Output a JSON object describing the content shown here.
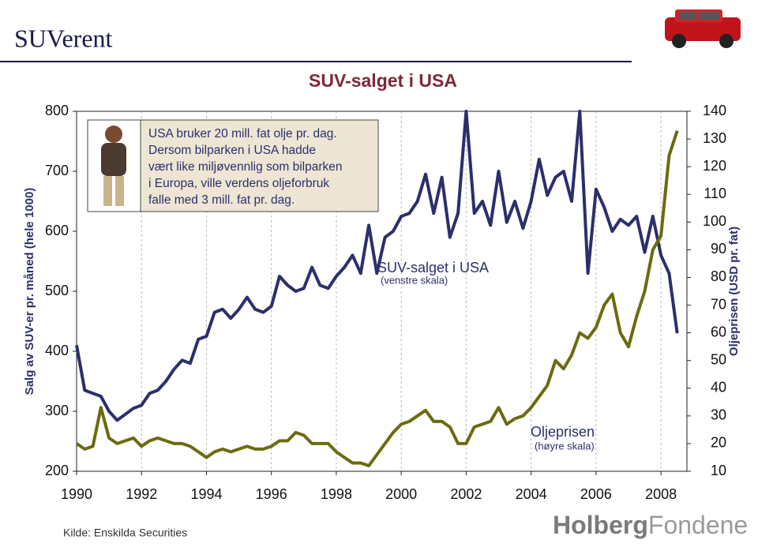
{
  "header": {
    "title": "SUVerent"
  },
  "source": "Kilde: Enskilda Securities",
  "logo": [
    "Holberg",
    "Fondene"
  ],
  "chart_data": {
    "type": "line",
    "title": "SUV-salget i USA",
    "ylabel": "Salg av SUV-er pr. måned (hele 1000)",
    "y2label": "Oljeprisen (USD pr. fat)",
    "callout": [
      "USA bruker 20 mill. fat olje pr. dag.",
      "Dersom bilparken i USA hadde",
      "vært like miljøvennlig som bilparken",
      "i Europa, ville verdens oljeforbruk",
      "falle med 3 mill. fat pr. dag."
    ],
    "annotations": [
      "SUV-salget i USA",
      "(venstre skala)",
      "Oljeprisen",
      "(høyre skala)"
    ],
    "xlim": [
      1990,
      2008.8
    ],
    "xticks": [
      1990,
      1992,
      1994,
      1996,
      1998,
      2000,
      2002,
      2004,
      2006,
      2008
    ],
    "ylim": [
      200,
      800
    ],
    "yticks": [
      200,
      300,
      400,
      500,
      600,
      700,
      800
    ],
    "y2lim": [
      10,
      140
    ],
    "y2ticks": [
      10,
      20,
      30,
      40,
      50,
      60,
      70,
      80,
      90,
      100,
      110,
      120,
      130,
      140
    ],
    "grid": true,
    "x": [
      1990,
      1990.25,
      1990.5,
      1990.75,
      1991,
      1991.25,
      1991.5,
      1991.75,
      1992,
      1992.25,
      1992.5,
      1992.75,
      1993,
      1993.25,
      1993.5,
      1993.75,
      1994,
      1994.25,
      1994.5,
      1994.75,
      1995,
      1995.25,
      1995.5,
      1995.75,
      1996,
      1996.25,
      1996.5,
      1996.75,
      1997,
      1997.25,
      1997.5,
      1997.75,
      1998,
      1998.25,
      1998.5,
      1998.75,
      1999,
      1999.25,
      1999.5,
      1999.75,
      2000,
      2000.25,
      2000.5,
      2000.75,
      2001,
      2001.25,
      2001.5,
      2001.75,
      2002,
      2002.25,
      2002.5,
      2002.75,
      2003,
      2003.25,
      2003.5,
      2003.75,
      2004,
      2004.25,
      2004.5,
      2004.75,
      2005,
      2005.25,
      2005.5,
      2005.75,
      2006,
      2006.25,
      2006.5,
      2006.75,
      2007,
      2007.25,
      2007.5,
      2007.75,
      2008,
      2008.25,
      2008.5
    ],
    "series": [
      {
        "name": "SUV-salget i USA",
        "color": "#2b2f6b",
        "axis": "y",
        "values": [
          410,
          335,
          330,
          325,
          300,
          285,
          295,
          305,
          310,
          330,
          335,
          350,
          370,
          385,
          380,
          420,
          425,
          465,
          470,
          455,
          470,
          490,
          470,
          465,
          475,
          525,
          510,
          500,
          505,
          540,
          510,
          505,
          525,
          540,
          560,
          530,
          610,
          530,
          590,
          600,
          625,
          630,
          650,
          695,
          630,
          690,
          590,
          630,
          800,
          630,
          650,
          610,
          700,
          615,
          650,
          605,
          650,
          720,
          660,
          690,
          700,
          650,
          800,
          530,
          670,
          640,
          600,
          620,
          610,
          625,
          565,
          625,
          560,
          530,
          430
        ]
      },
      {
        "name": "Oljeprisen",
        "color": "#6b6b10",
        "axis": "y2",
        "values": [
          20,
          18,
          19,
          33,
          22,
          20,
          21,
          22,
          19,
          21,
          22,
          21,
          20,
          20,
          19,
          17,
          15,
          17,
          18,
          17,
          18,
          19,
          18,
          18,
          19,
          21,
          21,
          24,
          23,
          20,
          20,
          20,
          17,
          15,
          13,
          13,
          12,
          16,
          20,
          24,
          27,
          28,
          30,
          32,
          28,
          28,
          26,
          20,
          20,
          26,
          27,
          28,
          33,
          27,
          29,
          30,
          33,
          37,
          41,
          50,
          47,
          52,
          60,
          58,
          62,
          70,
          74,
          60,
          55,
          66,
          75,
          90,
          95,
          124,
          133
        ]
      }
    ]
  }
}
